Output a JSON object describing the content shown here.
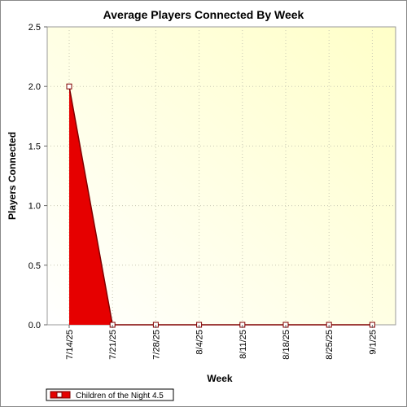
{
  "chart_data": {
    "type": "area",
    "title": "Average Players Connected By Week",
    "xlabel": "Week",
    "ylabel": "Players Connected",
    "ylim": [
      0,
      2.5
    ],
    "y_ticks": [
      "0.0",
      "0.5",
      "1.0",
      "1.5",
      "2.0",
      "2.5"
    ],
    "categories": [
      "7/14/25",
      "7/21/25",
      "7/28/25",
      "8/4/25",
      "8/11/25",
      "8/18/25",
      "8/25/25",
      "9/1/25"
    ],
    "grid": true,
    "legend_position": "bottom-left",
    "series": [
      {
        "name": "Children of the Night 4.5",
        "values": [
          2,
          0,
          0,
          0,
          0,
          0,
          0,
          0
        ],
        "fill_color": "#e60000",
        "line_color": "#800000"
      }
    ]
  }
}
